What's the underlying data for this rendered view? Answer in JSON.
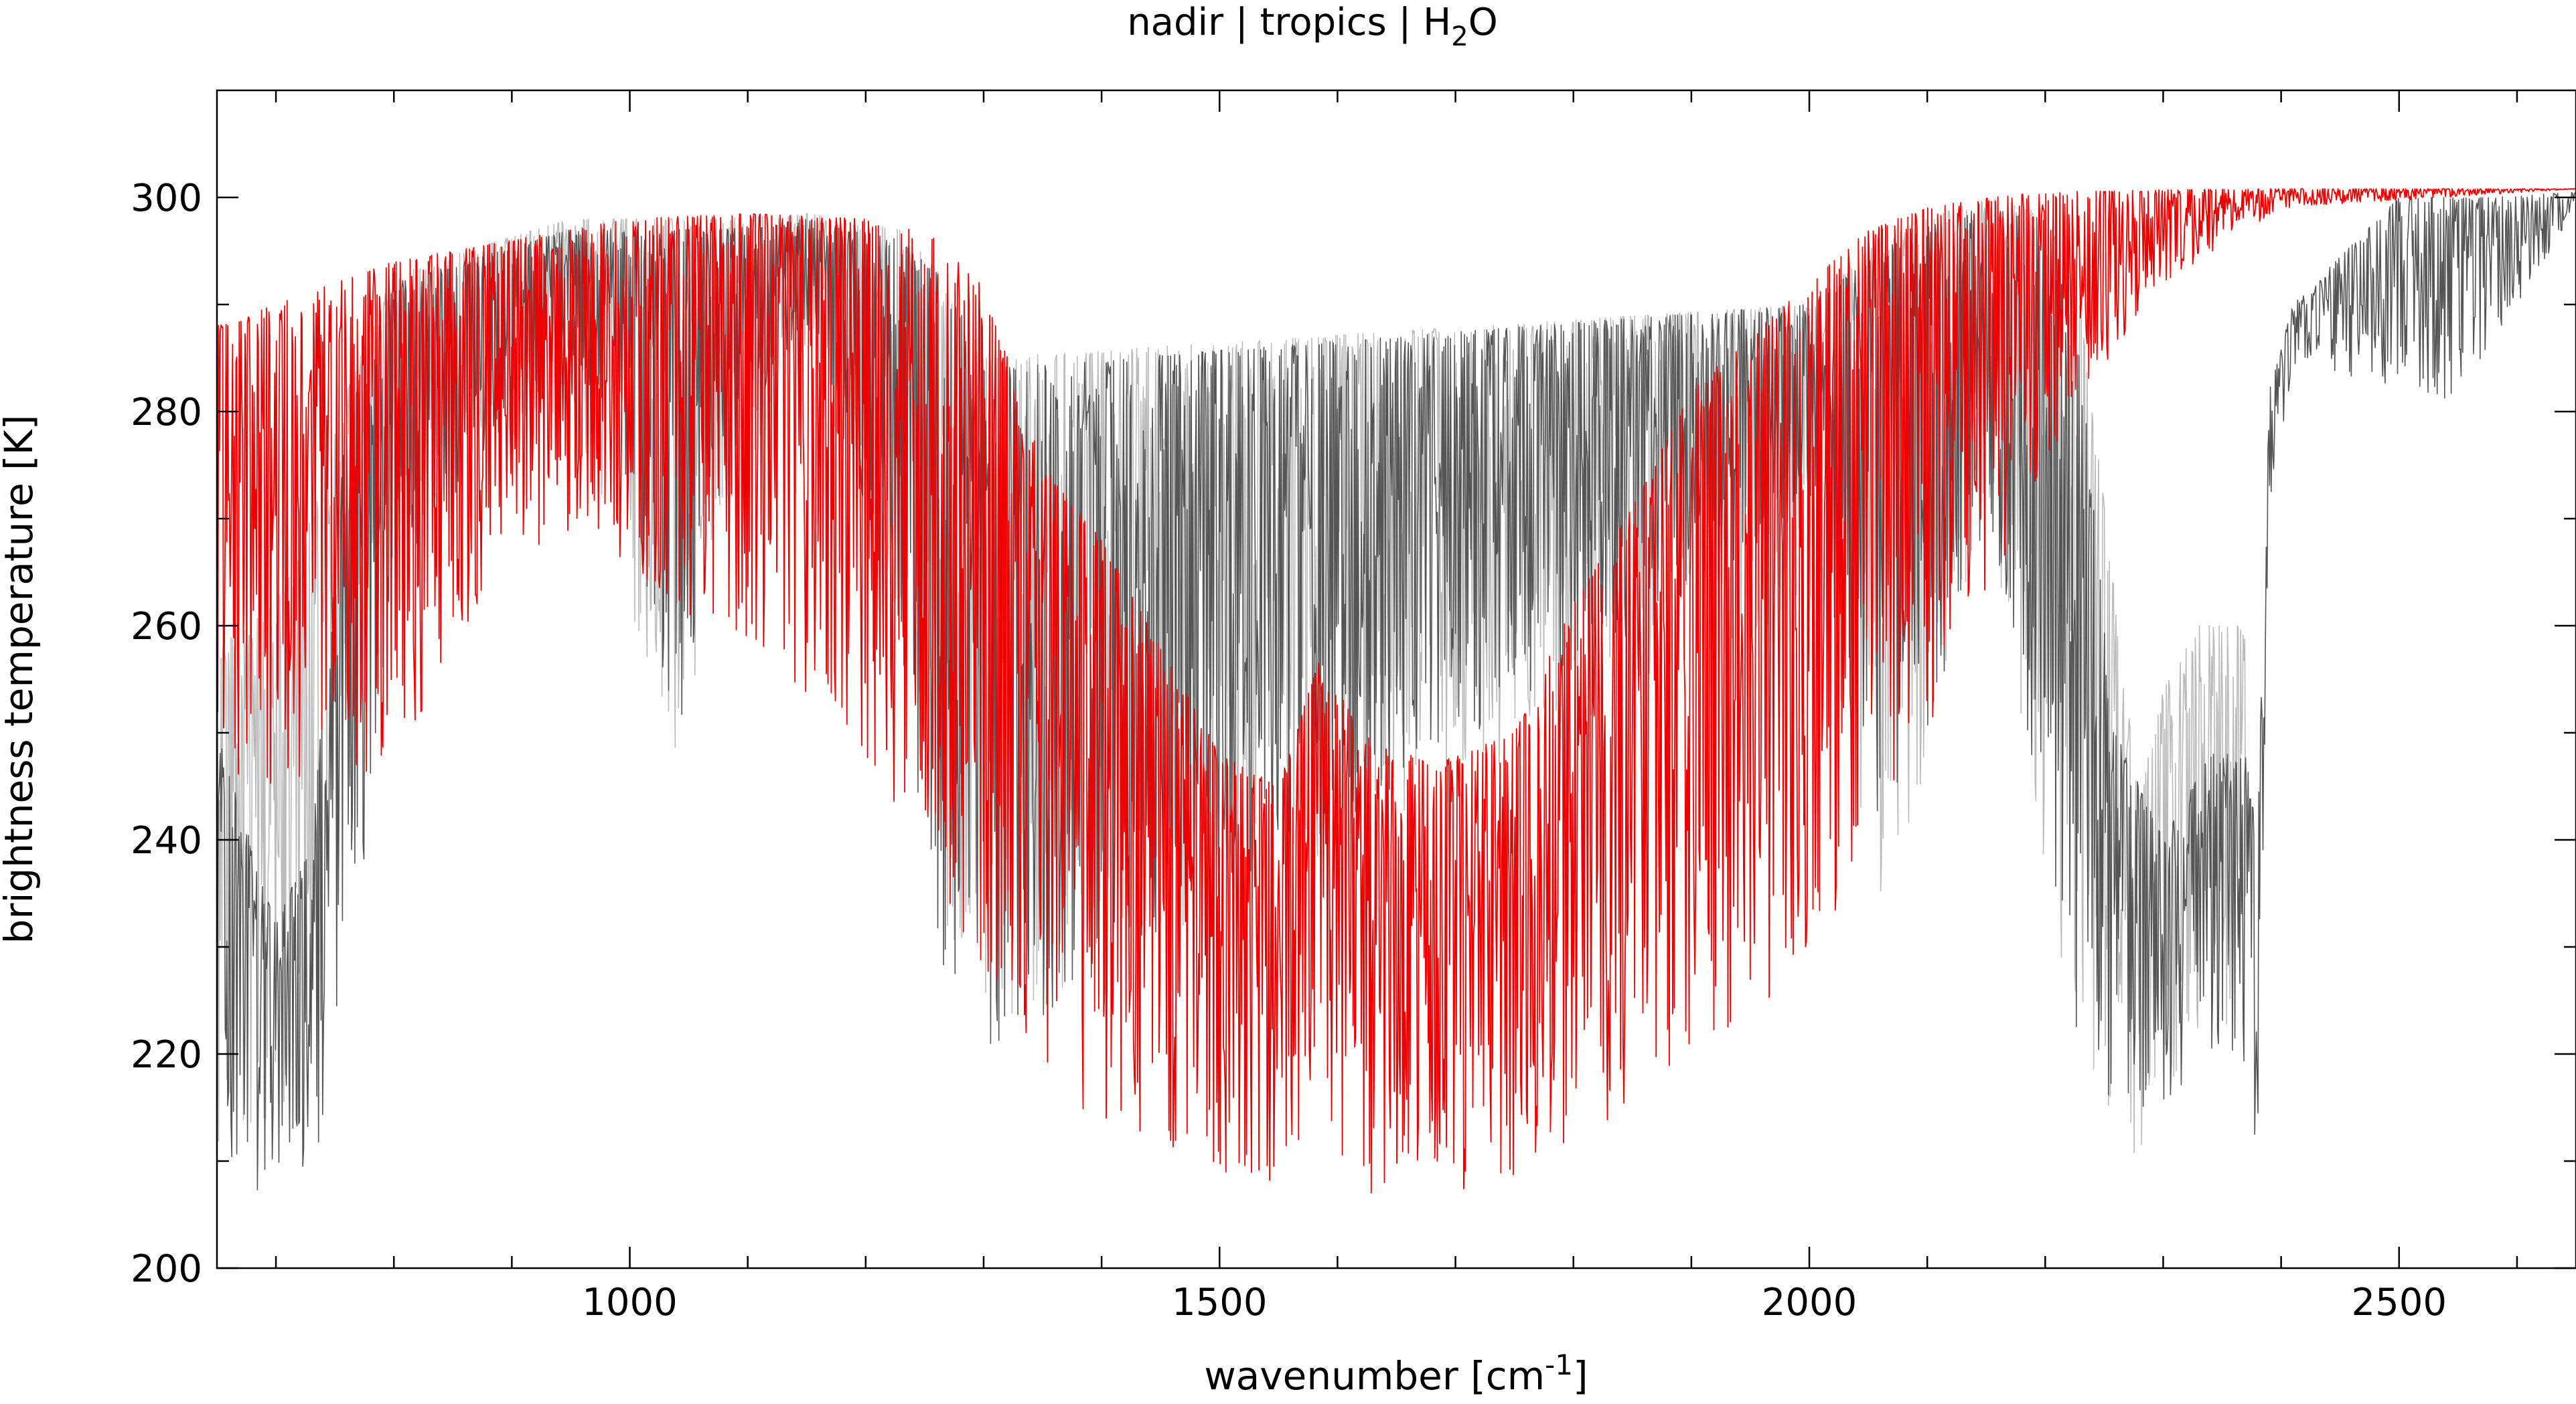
{
  "chart_data": {
    "type": "line",
    "title_parts": {
      "before": "nadir | tropics | H",
      "sub": "2",
      "after": "O"
    },
    "xlabel_parts": {
      "before": "wavenumber [cm",
      "sup": "-1",
      "after": "]"
    },
    "ylabel": "brightness temperature [K]",
    "xlim": [
      650,
      2650
    ],
    "ylim": [
      200,
      310
    ],
    "x_ticks_major": [
      1000,
      1500,
      2000,
      2500
    ],
    "x_ticks_major_labels": [
      "1000",
      "1500",
      "2000",
      "2500"
    ],
    "x_ticks_minor": [
      700,
      800,
      900,
      1100,
      1200,
      1300,
      1400,
      1600,
      1700,
      1800,
      1900,
      2100,
      2200,
      2300,
      2400,
      2600
    ],
    "y_ticks": [
      200,
      220,
      240,
      260,
      280,
      300
    ],
    "y_ticks_labels": [
      "200",
      "220",
      "240",
      "260",
      "280",
      "300"
    ],
    "y_ticks_minor": [
      210,
      230,
      250,
      270,
      290
    ],
    "legend": "none",
    "grid": false,
    "series": [
      {
        "color": "#bbbbbb",
        "envelope": [
          {
            "x": 650,
            "top": 258,
            "bottom": 211
          },
          {
            "x": 700,
            "top": 262,
            "bottom": 212
          },
          {
            "x": 730,
            "top": 270,
            "bottom": 218
          },
          {
            "x": 760,
            "top": 282,
            "bottom": 260
          },
          {
            "x": 800,
            "top": 293,
            "bottom": 270
          },
          {
            "x": 950,
            "top": 298,
            "bottom": 280
          },
          {
            "x": 1000,
            "top": 298,
            "bottom": 262
          },
          {
            "x": 1040,
            "top": 298,
            "bottom": 246
          },
          {
            "x": 1080,
            "top": 298,
            "bottom": 270
          },
          {
            "x": 1150,
            "top": 298.5,
            "bottom": 285
          },
          {
            "x": 1230,
            "top": 297,
            "bottom": 260
          },
          {
            "x": 1270,
            "top": 292,
            "bottom": 230
          },
          {
            "x": 1300,
            "top": 285,
            "bottom": 222
          },
          {
            "x": 2000,
            "top": 290,
            "bottom": 262
          },
          {
            "x": 2060,
            "top": 296,
            "bottom": 234
          },
          {
            "x": 2100,
            "top": 298,
            "bottom": 245
          },
          {
            "x": 2150,
            "top": 300,
            "bottom": 270
          },
          {
            "x": 2200,
            "top": 299,
            "bottom": 235
          },
          {
            "x": 2230,
            "top": 290,
            "bottom": 220
          },
          {
            "x": 2260,
            "top": 262,
            "bottom": 212
          },
          {
            "x": 2280,
            "top": 244,
            "bottom": 210
          },
          {
            "x": 2300,
            "top": 254,
            "bottom": 214
          },
          {
            "x": 2330,
            "top": 260,
            "bottom": 218
          },
          {
            "x": 2370,
            "top": 260,
            "bottom": 225
          }
        ]
      },
      {
        "color": "#555555",
        "envelope": [
          {
            "x": 650,
            "top": 250,
            "bottom": 207
          },
          {
            "x": 700,
            "top": 232,
            "bottom": 207
          },
          {
            "x": 730,
            "top": 240,
            "bottom": 210
          },
          {
            "x": 760,
            "top": 280,
            "bottom": 218
          },
          {
            "x": 800,
            "top": 292,
            "bottom": 265
          },
          {
            "x": 950,
            "top": 297,
            "bottom": 285
          },
          {
            "x": 1000,
            "top": 297,
            "bottom": 272
          },
          {
            "x": 1040,
            "top": 297,
            "bottom": 248
          },
          {
            "x": 1080,
            "top": 297,
            "bottom": 275
          },
          {
            "x": 1150,
            "top": 298,
            "bottom": 288
          },
          {
            "x": 1230,
            "top": 296,
            "bottom": 255
          },
          {
            "x": 1270,
            "top": 292,
            "bottom": 225
          },
          {
            "x": 1300,
            "top": 284,
            "bottom": 220
          },
          {
            "x": 2000,
            "top": 290,
            "bottom": 270
          },
          {
            "x": 2060,
            "top": 295,
            "bottom": 240
          },
          {
            "x": 2100,
            "top": 298,
            "bottom": 250
          },
          {
            "x": 2150,
            "top": 299,
            "bottom": 270
          },
          {
            "x": 2200,
            "top": 298,
            "bottom": 240
          },
          {
            "x": 2230,
            "top": 285,
            "bottom": 220
          },
          {
            "x": 2260,
            "top": 250,
            "bottom": 215
          },
          {
            "x": 2300,
            "top": 240,
            "bottom": 215
          },
          {
            "x": 2340,
            "top": 248,
            "bottom": 218
          },
          {
            "x": 2370,
            "top": 248,
            "bottom": 215
          },
          {
            "x": 2380,
            "top": 240,
            "bottom": 211
          },
          {
            "x": 2390,
            "top": 282,
            "bottom": 270
          },
          {
            "x": 2410,
            "top": 290,
            "bottom": 284
          },
          {
            "x": 2500,
            "top": 300,
            "bottom": 282
          },
          {
            "x": 2540,
            "top": 300,
            "bottom": 281
          },
          {
            "x": 2580,
            "top": 300,
            "bottom": 286
          },
          {
            "x": 2650,
            "top": 300.5,
            "bottom": 299
          }
        ]
      },
      {
        "color": "#ee0000",
        "envelope": [
          {
            "x": 650,
            "top": 288,
            "bottom": 245
          },
          {
            "x": 700,
            "top": 290,
            "bottom": 245
          },
          {
            "x": 800,
            "top": 294,
            "bottom": 246
          },
          {
            "x": 900,
            "top": 296,
            "bottom": 268
          },
          {
            "x": 1000,
            "top": 298,
            "bottom": 263
          },
          {
            "x": 1100,
            "top": 298.5,
            "bottom": 258
          },
          {
            "x": 1200,
            "top": 298,
            "bottom": 248
          },
          {
            "x": 1250,
            "top": 297,
            "bottom": 238
          },
          {
            "x": 1300,
            "top": 292,
            "bottom": 225
          },
          {
            "x": 1350,
            "top": 275,
            "bottom": 218
          },
          {
            "x": 1400,
            "top": 268,
            "bottom": 213
          },
          {
            "x": 1450,
            "top": 258,
            "bottom": 210
          },
          {
            "x": 1500,
            "top": 248,
            "bottom": 208
          },
          {
            "x": 1550,
            "top": 245,
            "bottom": 207
          },
          {
            "x": 1585,
            "top": 257,
            "bottom": 214
          },
          {
            "x": 1620,
            "top": 250,
            "bottom": 207
          },
          {
            "x": 1680,
            "top": 247,
            "bottom": 207
          },
          {
            "x": 1750,
            "top": 250,
            "bottom": 208
          },
          {
            "x": 1800,
            "top": 262,
            "bottom": 212
          },
          {
            "x": 1850,
            "top": 271,
            "bottom": 215
          },
          {
            "x": 1900,
            "top": 282,
            "bottom": 220
          },
          {
            "x": 1950,
            "top": 287,
            "bottom": 224
          },
          {
            "x": 2000,
            "top": 292,
            "bottom": 228
          },
          {
            "x": 2050,
            "top": 297,
            "bottom": 240
          },
          {
            "x": 2100,
            "top": 299,
            "bottom": 250
          },
          {
            "x": 2150,
            "top": 300,
            "bottom": 262
          },
          {
            "x": 2200,
            "top": 300.5,
            "bottom": 275
          },
          {
            "x": 2300,
            "top": 300.7,
            "bottom": 292
          },
          {
            "x": 2400,
            "top": 300.8,
            "bottom": 299
          },
          {
            "x": 2650,
            "top": 300.8,
            "bottom": 300.8
          }
        ]
      }
    ]
  }
}
